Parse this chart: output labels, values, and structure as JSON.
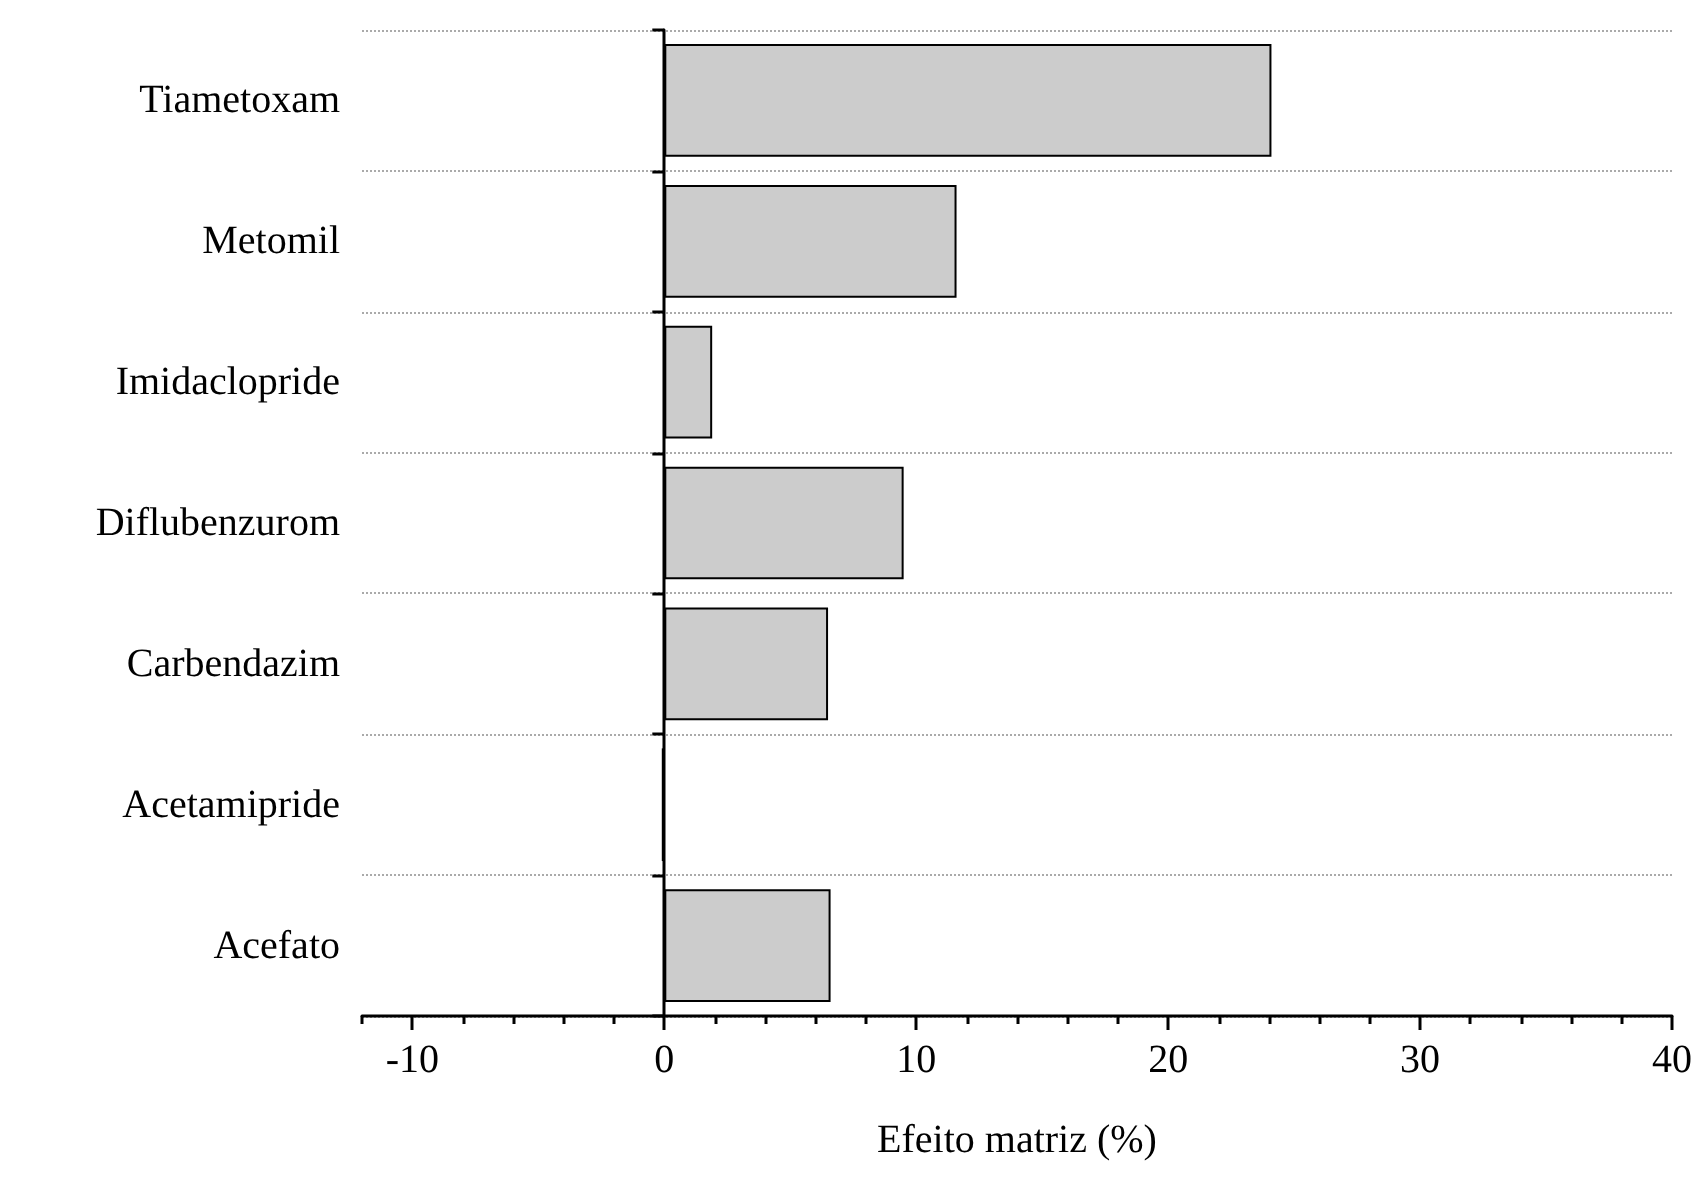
{
  "chart_data": {
    "type": "bar",
    "orientation": "horizontal",
    "xlabel": "Efeito matriz (%)",
    "categories": [
      "Tiametoxam",
      "Metomil",
      "Imidaclopride",
      "Diflubenzurom",
      "Carbendazim",
      "Acetamipride",
      "Acefato"
    ],
    "values": [
      24.1,
      11.6,
      1.9,
      9.5,
      6.5,
      -0.1,
      6.6
    ],
    "color": "#cccccc",
    "xlim": [
      -12,
      40
    ],
    "xticks": [
      -10,
      0,
      10,
      20,
      30,
      40
    ],
    "grid": "y"
  }
}
